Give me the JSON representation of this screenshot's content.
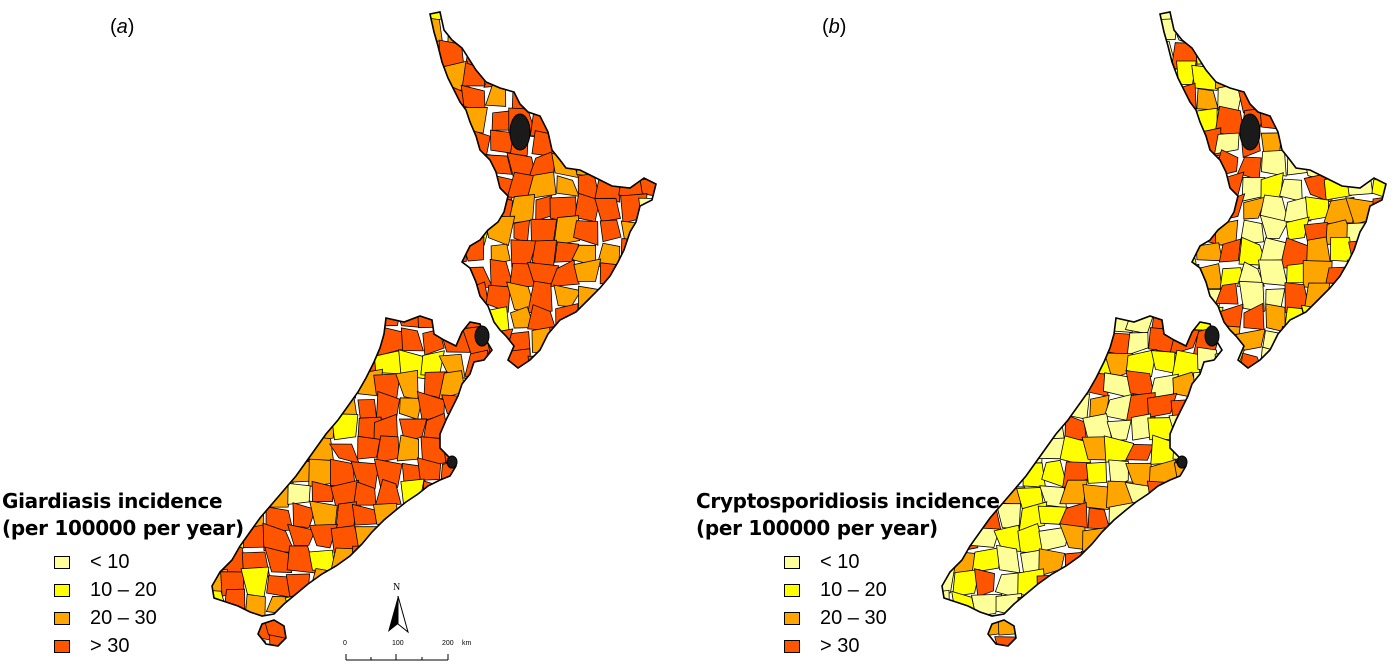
{
  "panels": [
    {
      "label": "a",
      "legend_title_line1": "Giardiasis incidence",
      "legend_title_line2": "(per 100000 per year)"
    },
    {
      "label": "b",
      "legend_title_line1": "Cryptosporidiosis incidence",
      "legend_title_line2": "(per 100000 per year)"
    }
  ],
  "legend_classes": [
    {
      "label": "< 10",
      "color": "#ffff99"
    },
    {
      "label": "10 – 20",
      "color": "#ffff00"
    },
    {
      "label": "20 – 30",
      "color": "#ffa500"
    },
    {
      "label": "> 30",
      "color": "#ff5500"
    }
  ],
  "north_arrow": {
    "label": "N"
  },
  "scale_bar": {
    "ticks": [
      "0",
      "100",
      "200"
    ],
    "unit": "km"
  }
}
